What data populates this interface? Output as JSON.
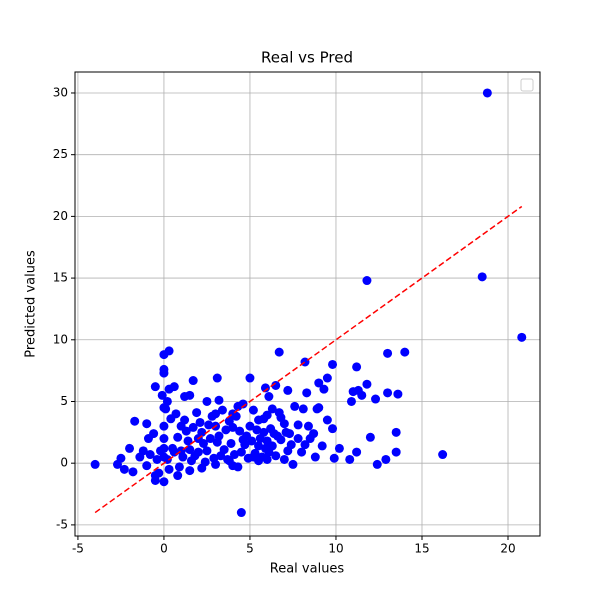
{
  "chart_data": {
    "type": "scatter",
    "title": "Real vs Pred",
    "x_label": "Real values",
    "y_label": "Predicted values",
    "xlim": [
      -5.17,
      21.86
    ],
    "ylim": [
      -5.9,
      31.7
    ],
    "xticks": [
      -5,
      0,
      5,
      10,
      15,
      20
    ],
    "yticks": [
      -5,
      0,
      5,
      10,
      15,
      20,
      25,
      30
    ],
    "grid": true,
    "series": [
      {
        "color": "#0000ff",
        "x": [
          18.8,
          18.5,
          20.8,
          11.8,
          16.2,
          4.5,
          -4,
          14,
          13,
          11.2,
          9.8,
          8.2,
          6.7,
          0.3,
          0,
          0,
          0,
          1.7,
          3.1,
          5,
          -0.5,
          0.6,
          5.9,
          6.5,
          9,
          9.5,
          11.3,
          11,
          11.8,
          12.3,
          13,
          13.6,
          10.9,
          11.5,
          8.3,
          7.2,
          6.1,
          9.3,
          2.5,
          3.2,
          1.2,
          1.5,
          -1.7,
          -1,
          -2,
          -2.5,
          -2.7,
          -2.3,
          -1.8,
          -1.4,
          -1.2,
          -0.9,
          -0.5,
          13.5,
          13.5,
          12.9,
          12.4,
          12,
          11.2,
          10.2,
          10.8,
          9.9,
          9.2,
          8.8,
          7.5,
          8,
          7.2,
          8.5,
          8.1,
          8.9,
          7.8,
          7.3,
          6.8,
          6.3,
          5.5,
          5.8,
          6,
          5.2,
          4.3,
          3.8,
          0.2,
          0.5,
          0.8,
          1.1,
          1.4,
          1.7,
          2,
          2.3,
          2.6,
          2.9,
          3.2,
          3.5,
          3.8,
          4.1,
          4.4,
          4.7,
          5,
          5.3,
          5.6,
          5.9,
          6.2,
          6.5,
          6.8,
          7.1,
          0.1,
          0.4,
          0.7,
          1,
          1.3,
          1.6,
          1.9,
          2.2,
          2.5,
          2.8,
          3.1,
          3.4,
          3.7,
          4,
          4.3,
          4.6,
          4.9,
          5.2,
          5.5,
          5.8,
          6.1,
          6.4,
          6.7,
          7,
          7.4,
          -0.2,
          -0.4,
          -0.6,
          -0.8,
          -1,
          -0.3,
          0.3,
          0.6,
          0.9,
          1.2,
          1.5,
          1.8,
          2.1,
          2.4,
          2.7,
          3,
          3.3,
          3.6,
          3.9,
          4.2,
          4.5,
          4.8,
          5.1,
          5.4,
          5.7,
          6,
          6.3,
          6.6,
          0,
          0,
          0,
          0,
          0,
          0.2,
          -0.1,
          0.3,
          2,
          3,
          4,
          1,
          4.6,
          4,
          3,
          2.2,
          1.5,
          0.8,
          0,
          -0.5,
          7.8,
          7.6,
          8.4,
          8.7,
          9,
          9.5,
          9.8,
          8.2,
          7,
          6,
          5.5
        ],
        "y": [
          30,
          15.1,
          10.2,
          14.8,
          0.7,
          -4,
          -0.1,
          9,
          8.9,
          7.8,
          8,
          8.2,
          9,
          9.1,
          8.8,
          7.6,
          7.3,
          6.7,
          6.9,
          6.9,
          6.2,
          6.2,
          6.1,
          6.3,
          6.5,
          6.9,
          5.9,
          5.8,
          6.4,
          5.2,
          5.7,
          5.6,
          5,
          5.5,
          5.7,
          5.9,
          5.4,
          6,
          5,
          5.1,
          5.4,
          5.5,
          3.4,
          3.2,
          1.2,
          0.4,
          -0.1,
          -0.5,
          -0.7,
          0.5,
          1,
          2,
          -1.4,
          2.5,
          0.9,
          0.3,
          -0.1,
          2.1,
          0.9,
          1.2,
          0.3,
          0.4,
          1.4,
          0.5,
          -0.1,
          0.9,
          1,
          2,
          4.4,
          4.4,
          3.1,
          2.4,
          3.7,
          4.4,
          3.5,
          2.5,
          1.8,
          0.5,
          -0.3,
          0.2,
          0.3,
          1.2,
          2.1,
          0.5,
          1.8,
          2.9,
          0.9,
          1.6,
          3.1,
          0.4,
          2.2,
          1.1,
          3.4,
          0.7,
          2.6,
          1.5,
          3,
          0.8,
          2,
          1.2,
          2.8,
          0.6,
          1.9,
          2.5,
          4.4,
          3.6,
          4,
          3,
          2.6,
          0.2,
          4.1,
          2.5,
          1,
          3.8,
          1.7,
          4.3,
          0.3,
          2.9,
          4.6,
          1.9,
          0.4,
          4.3,
          1.4,
          3.6,
          0.9,
          2.4,
          4.1,
          3.2,
          1.5,
          1,
          0.3,
          2.4,
          0.7,
          -0.2,
          -0.8,
          -0.5,
          0.9,
          -0.3,
          3.5,
          1.1,
          0.6,
          3.3,
          0.1,
          2,
          4,
          0.6,
          2.7,
          1.6,
          3.8,
          0.9,
          2.2,
          1.8,
          2.7,
          0.5,
          3.9,
          1.4,
          2.2,
          2,
          1.2,
          0.5,
          3,
          4.5,
          5,
          5.5,
          6,
          2,
          3,
          4,
          1,
          4.8,
          -0.2,
          -0.1,
          -0.4,
          -0.6,
          -1,
          -1.5,
          -1,
          2,
          4.6,
          3,
          2.4,
          4.5,
          3.5,
          2.8,
          1.5,
          0.3,
          0.3,
          0.2
        ]
      }
    ],
    "reference_line": {
      "x": [
        -4,
        20.8
      ],
      "y": [
        -4,
        20.8
      ],
      "color": "#ff0000",
      "style": "dashed"
    }
  }
}
